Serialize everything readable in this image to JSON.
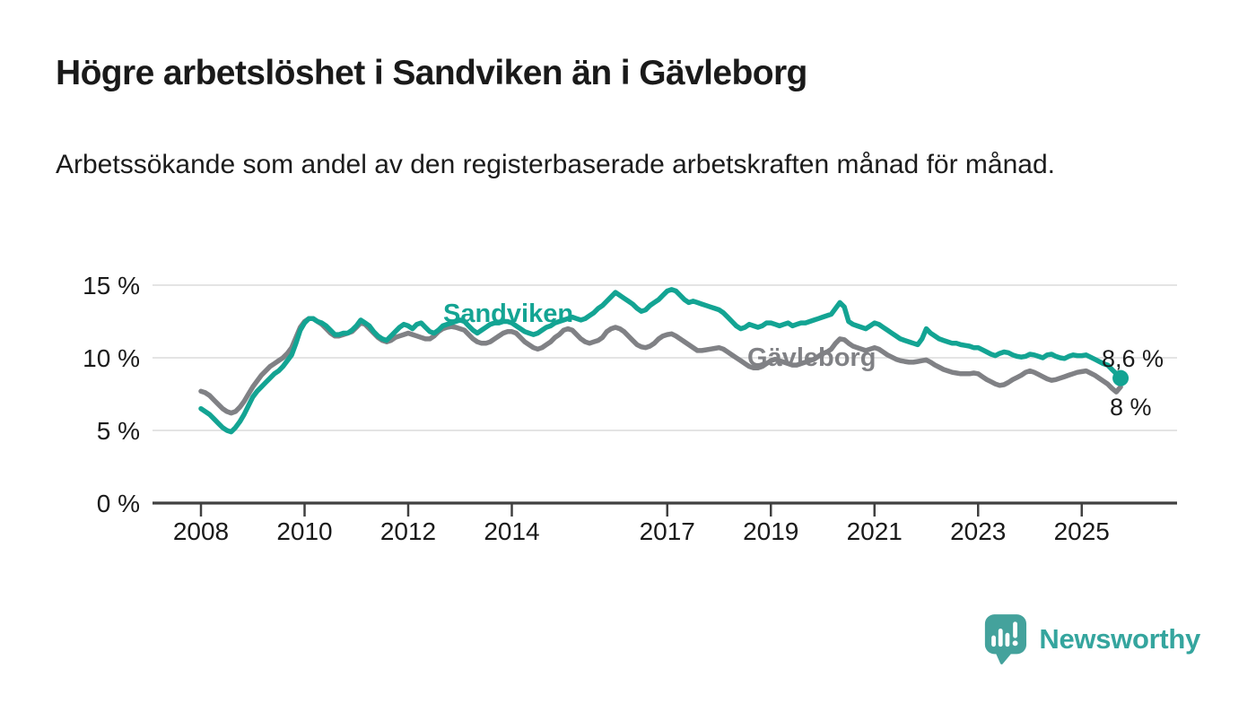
{
  "header": {
    "title": "Högre arbetslöshet i Sandviken än i Gävleborg",
    "subtitle": "Arbetssökande som andel av den registerbaserade arbetskraften månad för månad."
  },
  "footer": {
    "brand": "Newsworthy"
  },
  "colors": {
    "sandviken": "#13a493",
    "gavleborg": "#808185",
    "grid": "#dcdcdc",
    "axis": "#404040",
    "text": "#1a1a1a",
    "logo_teal": "#35a59e"
  },
  "chart_data": {
    "type": "line",
    "unit": "%",
    "x_start": "2008-01",
    "x_end": "2025-10",
    "x_step": "month",
    "ylim": [
      0,
      15.5
    ],
    "grid": "horizontal",
    "y_ticks": [
      0,
      5,
      10,
      15
    ],
    "y_tick_labels": [
      "0 %",
      "5 %",
      "10 %",
      "15 %"
    ],
    "x_ticks": [
      2008,
      2010,
      2012,
      2014,
      2017,
      2019,
      2021,
      2023,
      2025
    ],
    "x_tick_labels": [
      "2008",
      "2010",
      "2012",
      "2014",
      "2017",
      "2019",
      "2021",
      "2023",
      "2025"
    ],
    "end_labels": [
      {
        "series": "Sandviken",
        "text": "8,6 %"
      },
      {
        "series": "Gävleborg",
        "text": "8 %"
      }
    ],
    "series": [
      {
        "name": "Sandviken",
        "color": "#13a493",
        "end_dot": true,
        "values": [
          6.5,
          6.3,
          6.1,
          5.8,
          5.5,
          5.2,
          5.0,
          4.9,
          5.2,
          5.6,
          6.1,
          6.7,
          7.3,
          7.7,
          8.0,
          8.3,
          8.6,
          8.9,
          9.1,
          9.4,
          9.8,
          10.2,
          11.0,
          11.9,
          12.4,
          12.7,
          12.7,
          12.5,
          12.4,
          12.2,
          11.9,
          11.6,
          11.6,
          11.7,
          11.7,
          11.9,
          12.2,
          12.6,
          12.4,
          12.2,
          11.8,
          11.5,
          11.3,
          11.2,
          11.5,
          11.8,
          12.1,
          12.3,
          12.2,
          12.0,
          12.3,
          12.4,
          12.1,
          11.8,
          11.7,
          11.9,
          12.2,
          12.3,
          12.4,
          12.5,
          12.6,
          12.5,
          12.2,
          11.9,
          11.7,
          11.9,
          12.1,
          12.3,
          12.4,
          12.4,
          12.5,
          12.5,
          12.4,
          12.2,
          12.0,
          11.8,
          11.7,
          11.6,
          11.7,
          11.9,
          12.1,
          12.2,
          12.4,
          12.5,
          12.6,
          12.7,
          12.8,
          12.7,
          12.6,
          12.7,
          12.9,
          13.1,
          13.4,
          13.6,
          13.9,
          14.2,
          14.5,
          14.3,
          14.1,
          13.9,
          13.7,
          13.4,
          13.2,
          13.3,
          13.6,
          13.8,
          14.0,
          14.3,
          14.6,
          14.7,
          14.6,
          14.3,
          14.0,
          13.8,
          13.9,
          13.8,
          13.7,
          13.6,
          13.5,
          13.4,
          13.3,
          13.1,
          12.8,
          12.5,
          12.2,
          12.0,
          12.1,
          12.3,
          12.2,
          12.1,
          12.2,
          12.4,
          12.4,
          12.3,
          12.2,
          12.3,
          12.4,
          12.2,
          12.3,
          12.4,
          12.4,
          12.5,
          12.6,
          12.7,
          12.8,
          12.9,
          13.0,
          13.4,
          13.8,
          13.5,
          12.5,
          12.3,
          12.2,
          12.1,
          12.0,
          12.2,
          12.4,
          12.3,
          12.1,
          11.9,
          11.7,
          11.5,
          11.3,
          11.2,
          11.1,
          11.0,
          10.9,
          11.3,
          12.0,
          11.7,
          11.5,
          11.3,
          11.2,
          11.1,
          11.0,
          11.0,
          10.9,
          10.85,
          10.8,
          10.7,
          10.7,
          10.55,
          10.4,
          10.25,
          10.15,
          10.3,
          10.4,
          10.35,
          10.2,
          10.1,
          10.05,
          10.1,
          10.25,
          10.2,
          10.1,
          10.0,
          10.2,
          10.25,
          10.1,
          10.0,
          9.95,
          10.1,
          10.2,
          10.15,
          10.15,
          10.2,
          10.05,
          9.9,
          9.75,
          9.6,
          9.5,
          9.2,
          8.9,
          8.6
        ]
      },
      {
        "name": "Gävleborg",
        "color": "#808185",
        "end_dot": false,
        "values": [
          7.7,
          7.6,
          7.4,
          7.1,
          6.8,
          6.5,
          6.3,
          6.2,
          6.3,
          6.6,
          7.0,
          7.5,
          8.0,
          8.4,
          8.8,
          9.1,
          9.4,
          9.6,
          9.8,
          10.0,
          10.3,
          10.7,
          11.4,
          12.1,
          12.5,
          12.7,
          12.7,
          12.5,
          12.3,
          12.0,
          11.7,
          11.5,
          11.5,
          11.6,
          11.7,
          11.8,
          12.1,
          12.4,
          12.3,
          12.0,
          11.7,
          11.4,
          11.2,
          11.1,
          11.2,
          11.4,
          11.5,
          11.6,
          11.7,
          11.6,
          11.5,
          11.4,
          11.3,
          11.3,
          11.5,
          11.8,
          12.0,
          12.1,
          12.15,
          12.1,
          12.0,
          11.9,
          11.6,
          11.3,
          11.1,
          11.0,
          11.0,
          11.1,
          11.3,
          11.5,
          11.7,
          11.8,
          11.8,
          11.7,
          11.4,
          11.1,
          10.9,
          10.7,
          10.6,
          10.7,
          10.9,
          11.1,
          11.4,
          11.6,
          11.9,
          12.0,
          11.9,
          11.6,
          11.3,
          11.1,
          11.0,
          11.1,
          11.2,
          11.4,
          11.8,
          12.0,
          12.1,
          12.0,
          11.8,
          11.5,
          11.2,
          10.9,
          10.75,
          10.7,
          10.8,
          11.0,
          11.3,
          11.5,
          11.6,
          11.65,
          11.5,
          11.3,
          11.1,
          10.9,
          10.7,
          10.5,
          10.5,
          10.55,
          10.6,
          10.65,
          10.7,
          10.6,
          10.4,
          10.2,
          10.0,
          9.8,
          9.6,
          9.4,
          9.3,
          9.3,
          9.4,
          9.6,
          9.8,
          9.9,
          9.8,
          9.7,
          9.6,
          9.5,
          9.5,
          9.6,
          9.7,
          9.8,
          9.9,
          10.1,
          10.3,
          10.4,
          10.6,
          11.0,
          11.3,
          11.25,
          11.0,
          10.8,
          10.7,
          10.6,
          10.5,
          10.6,
          10.7,
          10.6,
          10.4,
          10.2,
          10.05,
          9.9,
          9.8,
          9.75,
          9.7,
          9.7,
          9.75,
          9.8,
          9.85,
          9.7,
          9.5,
          9.35,
          9.2,
          9.1,
          9.0,
          8.95,
          8.9,
          8.9,
          8.9,
          8.95,
          8.9,
          8.7,
          8.5,
          8.35,
          8.2,
          8.1,
          8.15,
          8.3,
          8.5,
          8.65,
          8.8,
          9.0,
          9.1,
          9.0,
          8.85,
          8.7,
          8.55,
          8.45,
          8.5,
          8.6,
          8.7,
          8.8,
          8.9,
          9.0,
          9.05,
          9.1,
          8.95,
          8.8,
          8.6,
          8.4,
          8.2,
          7.9,
          7.65,
          8.0
        ]
      }
    ]
  }
}
